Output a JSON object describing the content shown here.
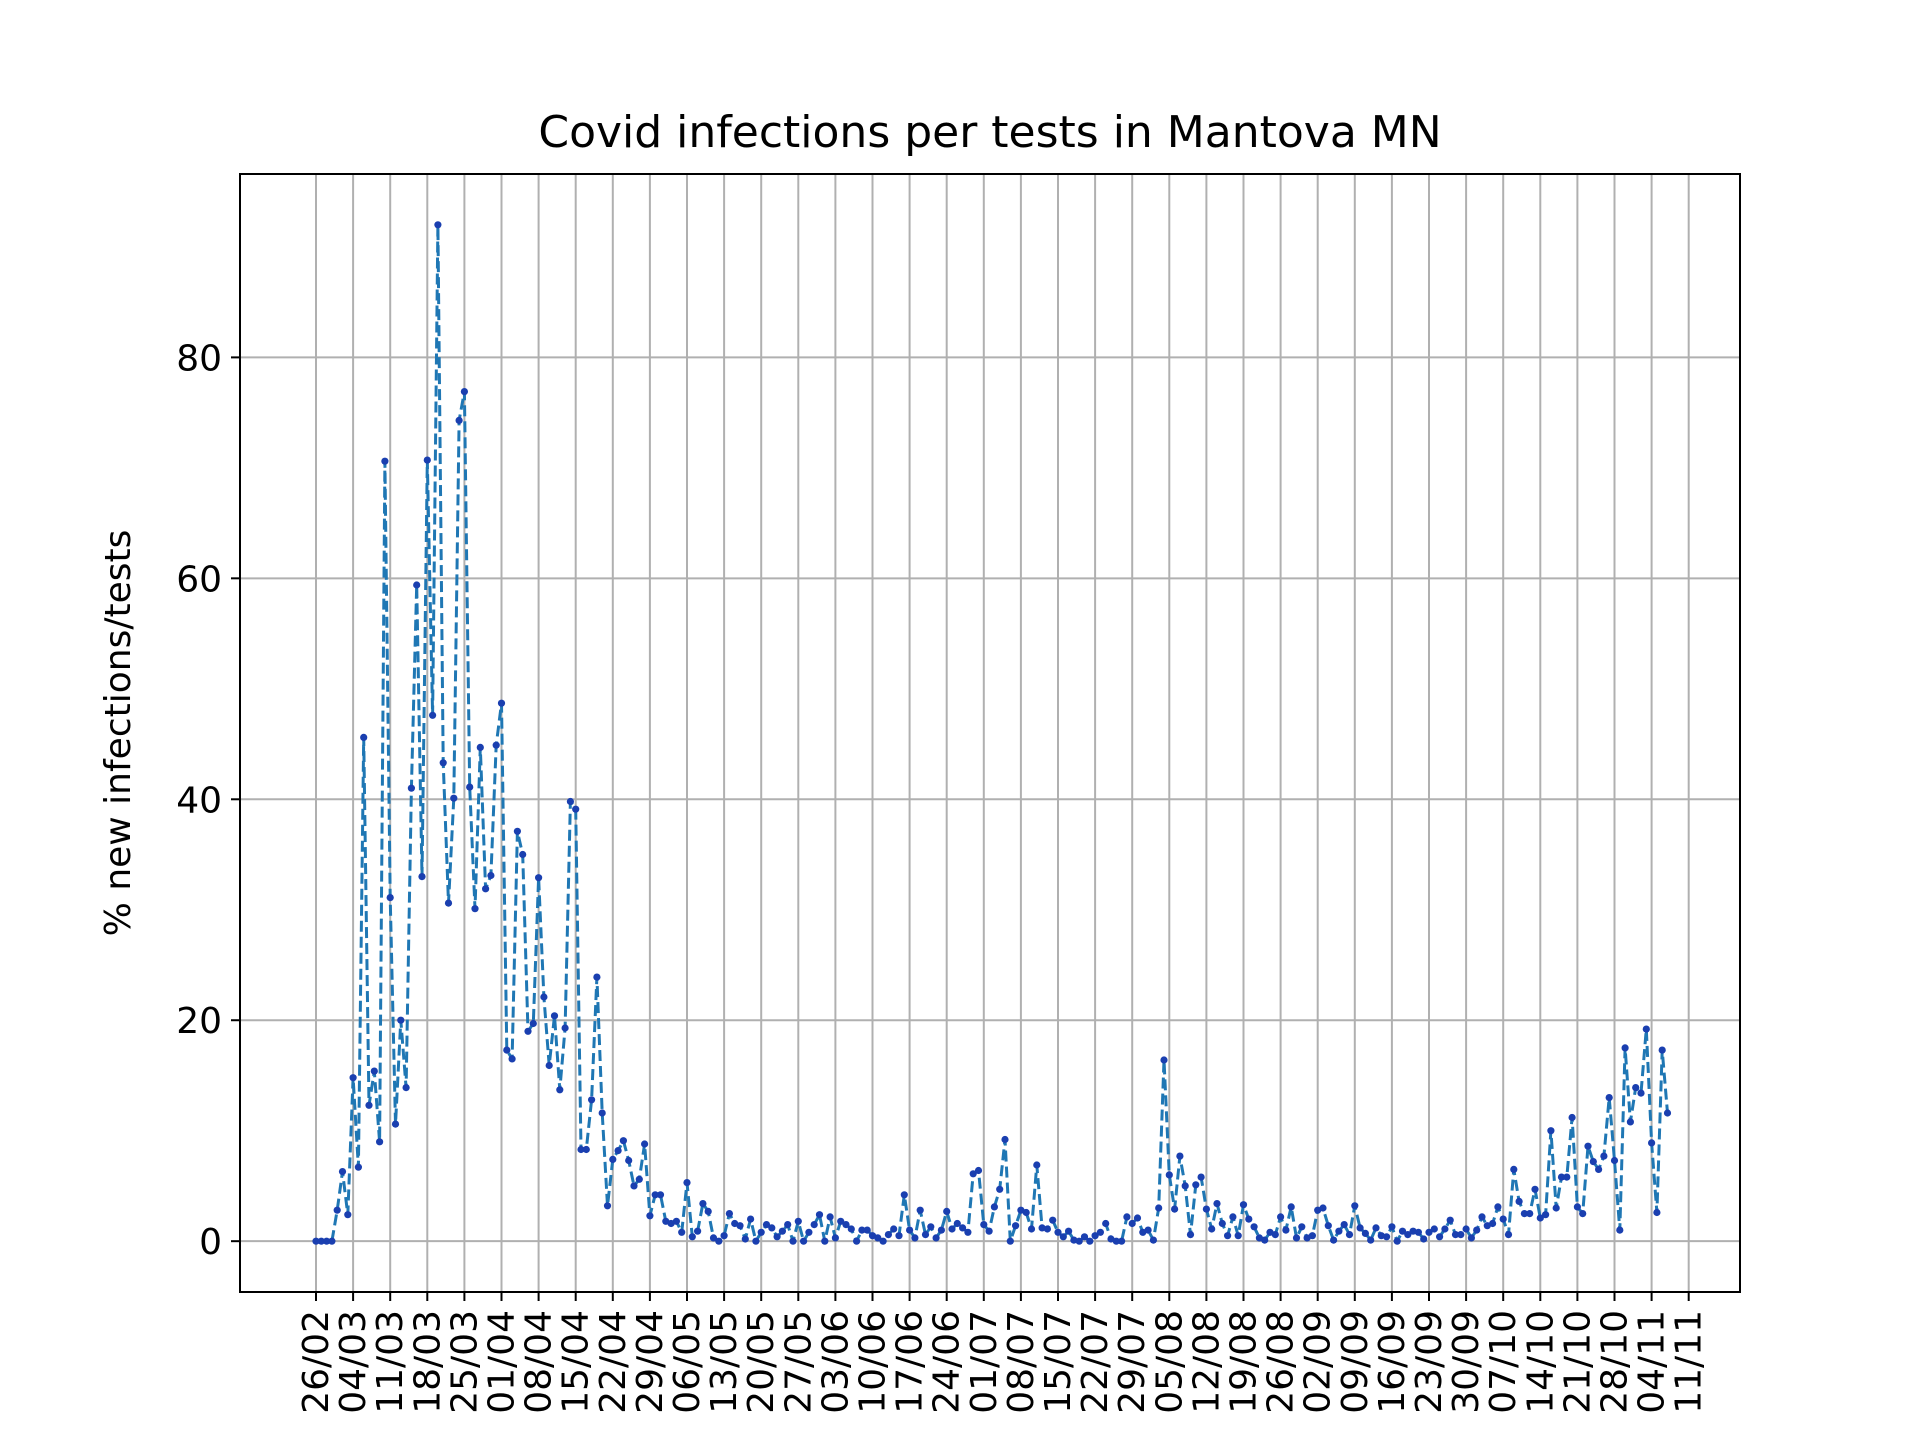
{
  "chart_data": {
    "type": "line",
    "title": "Covid infections per tests in Mantova MN",
    "xlabel": "",
    "ylabel": "% new infections/tests",
    "x_tick_labels": [
      "26/02",
      "04/03",
      "11/03",
      "18/03",
      "25/03",
      "01/04",
      "08/04",
      "15/04",
      "22/04",
      "29/04",
      "06/05",
      "13/05",
      "20/05",
      "27/05",
      "03/06",
      "10/06",
      "17/06",
      "24/06",
      "01/07",
      "08/07",
      "15/07",
      "22/07",
      "29/07",
      "05/08",
      "12/08",
      "19/08",
      "26/08",
      "02/09",
      "09/09",
      "16/09",
      "23/09",
      "30/09",
      "07/10",
      "14/10",
      "21/10",
      "28/10",
      "04/11",
      "11/11"
    ],
    "y_ticks": [
      0,
      20,
      40,
      60,
      80
    ],
    "ylim": [
      -4.6,
      96.6
    ],
    "x_start_date": "2020-02-26",
    "grid": true,
    "series_color": "#1f77b4",
    "marker_color": "#1a3fb0",
    "values": [
      0,
      0,
      0,
      0,
      2.8,
      6.3,
      2.4,
      14.8,
      6.7,
      45.6,
      12.3,
      15.4,
      9.0,
      70.6,
      31.1,
      10.6,
      20.0,
      13.9,
      41.0,
      59.4,
      33.0,
      70.7,
      47.6,
      92.0,
      43.3,
      30.6,
      40.1,
      74.3,
      76.9,
      41.1,
      30.1,
      44.7,
      31.9,
      33.1,
      44.9,
      48.7,
      17.3,
      16.5,
      37.1,
      35.0,
      19.0,
      19.7,
      32.9,
      22.1,
      15.9,
      20.4,
      13.7,
      19.3,
      39.8,
      39.1,
      8.3,
      8.3,
      12.8,
      23.9,
      11.6,
      3.2,
      7.4,
      8.2,
      9.1,
      7.3,
      5.0,
      5.6,
      8.8,
      2.3,
      4.2,
      4.2,
      1.8,
      1.6,
      1.8,
      0.8,
      5.3,
      0.4,
      0.9,
      3.4,
      2.7,
      0.3,
      0,
      0.5,
      2.5,
      1.6,
      1.4,
      0.2,
      2.0,
      0,
      0.8,
      1.5,
      1.2,
      0.4,
      0.9,
      1.5,
      0,
      1.8,
      0,
      0.8,
      1.5,
      2.4,
      0,
      2.2,
      0.3,
      1.8,
      1.5,
      1.1,
      0,
      1.0,
      1.0,
      0.5,
      0.3,
      0,
      0.6,
      1.1,
      0.5,
      4.2,
      1.0,
      0.3,
      2.8,
      0.6,
      1.3,
      0.3,
      1.0,
      2.7,
      1.1,
      1.6,
      1.2,
      0.8,
      6.1,
      6.4,
      1.5,
      0.9,
      3.1,
      4.7,
      9.2,
      0,
      1.4,
      2.8,
      2.6,
      1.1,
      6.9,
      1.2,
      1.1,
      1.9,
      0.8,
      0.4,
      0.9,
      0.1,
      0,
      0.4,
      0,
      0.5,
      0.8,
      1.6,
      0.2,
      0,
      0,
      2.2,
      1.6,
      2.1,
      0.8,
      1.0,
      0.1,
      3.0,
      16.4,
      6.0,
      2.9,
      7.7,
      5.0,
      0.6,
      5.1,
      5.8,
      2.9,
      1.1,
      3.4,
      1.6,
      0.5,
      2.2,
      0.5,
      3.3,
      2.0,
      1.3,
      0.3,
      0.1,
      0.8,
      0.6,
      2.2,
      1.0,
      3.1,
      0.3,
      1.3,
      0.3,
      0.5,
      2.8,
      3.0,
      1.4,
      0.1,
      0.9,
      1.5,
      0.6,
      3.2,
      1.2,
      0.7,
      0.1,
      1.2,
      0.5,
      0.4,
      1.3,
      0,
      0.9,
      0.6,
      0.9,
      0.8,
      0.2,
      0.8,
      1.1,
      0.4,
      1.1,
      1.9,
      0.6,
      0.6,
      1.1,
      0.3,
      1.0,
      2.2,
      1.4,
      1.6,
      3.1,
      2.0,
      0.6,
      6.5,
      3.6,
      2.5,
      2.5,
      4.7,
      2.1,
      2.4,
      10.0,
      3.0,
      5.8,
      5.8,
      11.2,
      3.1,
      2.5,
      8.6,
      7.2,
      6.5,
      7.7,
      13.0,
      7.3,
      1.0,
      17.5,
      10.8,
      13.9,
      13.4,
      19.2,
      8.9,
      2.6,
      17.3,
      11.6
    ]
  }
}
